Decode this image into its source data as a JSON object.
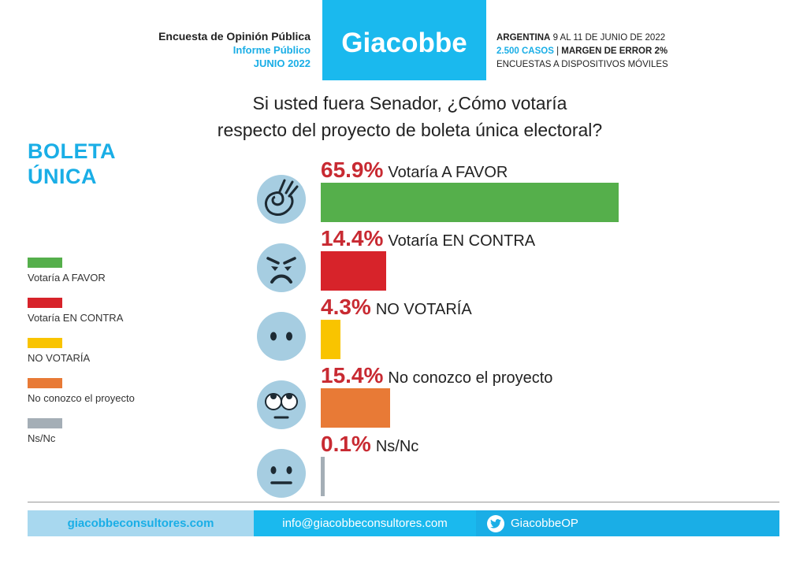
{
  "header": {
    "left_line1": "Encuesta de Opinión Pública",
    "left_line2": "Informe Público",
    "left_line3": "JUNIO 2022",
    "brand": "Giacobbe",
    "right_country": "ARGENTINA",
    "right_dates": " 9 AL 11 DE JUNIO DE 2022",
    "right_cases": "2.500 CASOS",
    "right_sep": " | ",
    "right_margin": "MARGEN DE ERROR 2%",
    "right_line3": "ENCUESTAS A DISPOSITIVOS MÓVILES"
  },
  "question": {
    "line1": "Si usted fuera Senador, ¿Cómo votaría",
    "line2": "respecto del proyecto de boleta única electoral?"
  },
  "side_title": {
    "line1": "BOLETA",
    "line2": "ÚNICA"
  },
  "legend": [
    {
      "label": "Votaría A FAVOR",
      "color": "#55af4b"
    },
    {
      "label": "Votaría EN CONTRA",
      "color": "#d7232a"
    },
    {
      "label": "NO VOTARÍA",
      "color": "#f9c400"
    },
    {
      "label": "No conozco el proyecto",
      "color": "#e87a36"
    },
    {
      "label": "Ns/Nc",
      "color": "#a4aeb6"
    }
  ],
  "chart_data": {
    "type": "bar",
    "orientation": "horizontal",
    "categories": [
      "Votaría A FAVOR",
      "Votaría EN CONTRA",
      "NO VOTARÍA",
      "No conozco el proyecto",
      "Ns/Nc"
    ],
    "values": [
      65.9,
      14.4,
      4.3,
      15.4,
      0.1
    ],
    "value_labels": [
      "65.9%",
      "14.4%",
      "4.3%",
      "15.4%",
      "0.1%"
    ],
    "colors": [
      "#55af4b",
      "#d7232a",
      "#f9c400",
      "#e87a36",
      "#a4aeb6"
    ],
    "icons": [
      "ok-hand-icon",
      "angry-face-icon",
      "no-mouth-face-icon",
      "eye-roll-face-icon",
      "neutral-face-icon"
    ],
    "title": "Si usted fuera Senador, ¿Cómo votaría respecto del proyecto de boleta única electoral?",
    "xlim": [
      0,
      100
    ],
    "grid": false,
    "legend_position": "left"
  },
  "footer": {
    "website": "giacobbeconsultores.com",
    "email": "info@giacobbeconsultores.com",
    "twitter": "GiacobbeOP"
  },
  "colors": {
    "accent": "#1ab9ee",
    "percent_text": "#c82a32"
  }
}
